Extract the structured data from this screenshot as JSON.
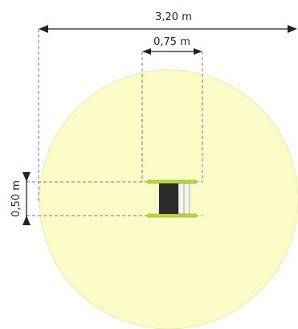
{
  "dimensions": {
    "width_total": "3,20 m",
    "width_item": "0,75 m",
    "depth_item": "0,50 m"
  },
  "colors": {
    "safety_area_fill": "#fbfbc8",
    "safety_area_stroke": "#e9e9ad",
    "item_seat": "#2b2b2b",
    "item_edge": "#b8d84a",
    "dim_line": "#222222",
    "dashed_line": "#777777"
  }
}
